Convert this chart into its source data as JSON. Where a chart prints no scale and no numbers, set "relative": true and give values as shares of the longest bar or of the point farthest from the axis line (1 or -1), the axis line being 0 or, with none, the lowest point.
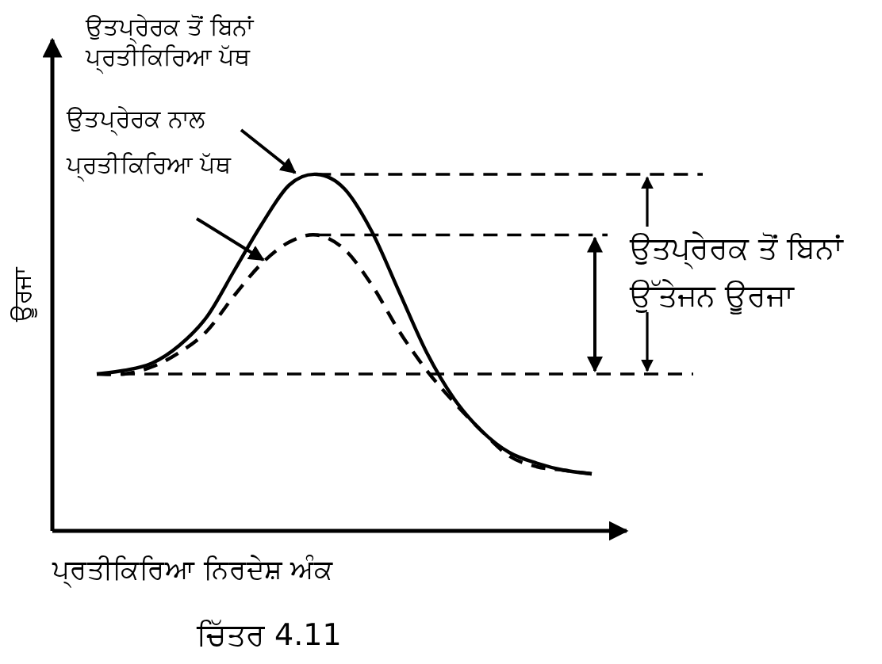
{
  "chart_data": {
    "type": "line",
    "relative": true,
    "xlabel": "ਪ੍ਰਤੀਕਿਰਿਆ ਨਿਰਦੇਸ਼ ਅੰਕ",
    "ylabel": "ਊਰਜਾ",
    "categories": [
      null,
      null,
      null,
      null,
      null,
      null,
      null,
      null,
      null,
      null,
      null,
      null,
      null,
      null,
      null,
      null,
      null,
      null,
      null
    ],
    "series": [
      {
        "color": "#000000",
        "line_style": "solid",
        "values": [
          0.44,
          0.45,
          0.47,
          0.52,
          0.6,
          0.73,
          0.86,
          0.97,
          1,
          0.96,
          0.84,
          0.67,
          0.5,
          0.37,
          0.28,
          0.22,
          0.19,
          0.17,
          0.16
        ]
      },
      {
        "color": "#000000",
        "line_style": "dashed",
        "values": [
          0.44,
          0.44,
          0.46,
          0.5,
          0.56,
          0.66,
          0.75,
          0.81,
          0.83,
          0.79,
          0.69,
          0.56,
          0.45,
          0.36,
          0.28,
          0.21,
          0.18,
          0.17,
          0.16
        ]
      }
    ],
    "ref_lines": [
      {
        "axis": "y",
        "value": 1,
        "line_style": "dashed"
      },
      {
        "axis": "y",
        "value": 0.83,
        "line_style": "dashed"
      },
      {
        "axis": "y",
        "value": 0.44,
        "line_style": "dashed"
      }
    ],
    "annotations": [
      "ਉਤਪ੍ਰੇਰਕ ਤੋਂ ਬਿਨਾਂ\nਪ੍ਰਤੀਕਿਰਿਆ ਪੱਥ",
      "ਉਤਪ੍ਰੇਰਕ ਨਾਲ\nਪ੍ਰਤੀਕਿਰਿਆ ਪੱਥ",
      "ਉਤਪ੍ਰੇਰਕ ਤੋਂ ਬਿਨਾਂ\nਉੱਤੇਜਨ ਊਰਜਾ",
      "ਚਿੱਤਰ 4.11"
    ]
  }
}
